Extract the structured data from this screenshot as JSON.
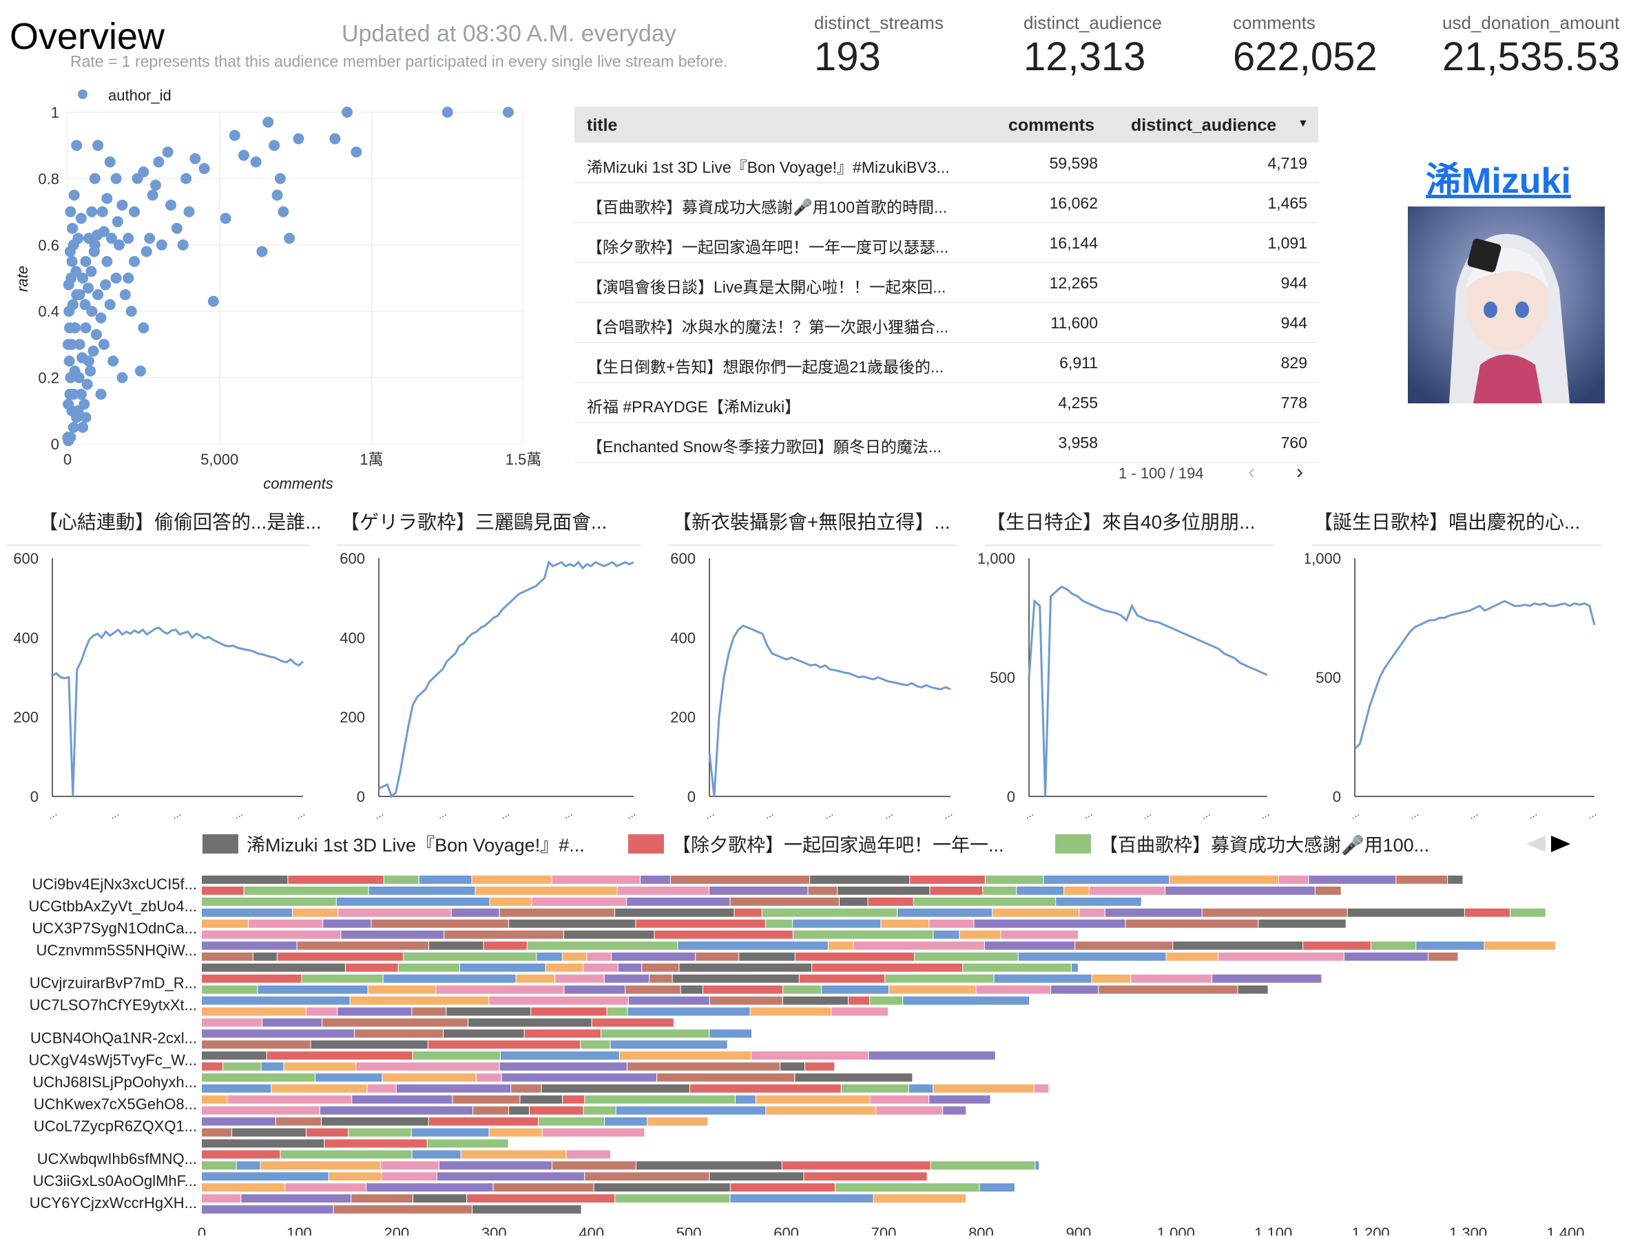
{
  "header": {
    "title": "Overview",
    "updated_text": "Updated at 08:30 A.M. everyday",
    "rate_note": "Rate = 1 represents that this audience member participated in every single live stream before."
  },
  "kpis": [
    {
      "label": "distinct_streams",
      "value": "193"
    },
    {
      "label": "distinct_audience",
      "value": "12,313"
    },
    {
      "label": "comments",
      "value": "622,052"
    },
    {
      "label": "usd_donation_amount",
      "value": "21,535.53"
    }
  ],
  "scatter": {
    "legend": "author_id",
    "xlabel": "comments",
    "ylabel": "rate",
    "x_ticks": [
      "0",
      "5,000",
      "1萬",
      "1.5萬"
    ],
    "y_ticks": [
      "0",
      "0.2",
      "0.4",
      "0.6",
      "0.8",
      "1"
    ],
    "color": "#6f9ad3",
    "chart_data": {
      "type": "scatter",
      "xlim": [
        0,
        15000
      ],
      "ylim": [
        0,
        1
      ],
      "points": [
        [
          12500,
          1.0
        ],
        [
          14500,
          1.0
        ],
        [
          9200,
          1.0
        ],
        [
          8800,
          0.92
        ],
        [
          9500,
          0.88
        ],
        [
          7600,
          0.92
        ],
        [
          6600,
          0.97
        ],
        [
          6800,
          0.9
        ],
        [
          7000,
          0.8
        ],
        [
          6900,
          0.75
        ],
        [
          7100,
          0.7
        ],
        [
          7300,
          0.62
        ],
        [
          6400,
          0.58
        ],
        [
          5500,
          0.93
        ],
        [
          5800,
          0.87
        ],
        [
          6200,
          0.85
        ],
        [
          5200,
          0.68
        ],
        [
          4800,
          0.43
        ],
        [
          4500,
          0.83
        ],
        [
          4200,
          0.86
        ],
        [
          3900,
          0.8
        ],
        [
          4000,
          0.7
        ],
        [
          3800,
          0.6
        ],
        [
          3400,
          0.72
        ],
        [
          3600,
          0.65
        ],
        [
          3000,
          0.85
        ],
        [
          2900,
          0.78
        ],
        [
          2800,
          0.75
        ],
        [
          2600,
          0.58
        ],
        [
          2500,
          0.82
        ],
        [
          2300,
          0.8
        ],
        [
          2200,
          0.7
        ],
        [
          2000,
          0.62
        ],
        [
          2200,
          0.55
        ],
        [
          1800,
          0.72
        ],
        [
          1600,
          0.8
        ],
        [
          1400,
          0.85
        ],
        [
          1300,
          0.74
        ],
        [
          1200,
          0.64
        ],
        [
          1000,
          0.9
        ],
        [
          900,
          0.8
        ],
        [
          800,
          0.7
        ],
        [
          700,
          0.62
        ],
        [
          600,
          0.55
        ],
        [
          500,
          0.5
        ],
        [
          400,
          0.45
        ],
        [
          300,
          0.9
        ],
        [
          200,
          0.6
        ],
        [
          150,
          0.55
        ],
        [
          100,
          0.7
        ],
        [
          50,
          0.4
        ],
        [
          20,
          0.3
        ],
        [
          60,
          0.25
        ],
        [
          100,
          0.2
        ],
        [
          200,
          0.15
        ],
        [
          150,
          0.1
        ],
        [
          300,
          0.08
        ],
        [
          500,
          0.05
        ],
        [
          100,
          0.02
        ],
        [
          30,
          0.01
        ],
        [
          400,
          0.3
        ],
        [
          600,
          0.35
        ],
        [
          800,
          0.4
        ],
        [
          1000,
          0.45
        ],
        [
          1200,
          0.3
        ],
        [
          1500,
          0.25
        ],
        [
          1800,
          0.2
        ],
        [
          2400,
          0.22
        ],
        [
          2500,
          0.35
        ],
        [
          1600,
          0.5
        ],
        [
          1400,
          0.42
        ],
        [
          900,
          0.6
        ],
        [
          700,
          0.25
        ],
        [
          300,
          0.45
        ],
        [
          250,
          0.35
        ],
        [
          200,
          0.05
        ],
        [
          80,
          0.15
        ],
        [
          120,
          0.5
        ],
        [
          350,
          0.62
        ],
        [
          450,
          0.68
        ],
        [
          550,
          0.12
        ],
        [
          650,
          0.18
        ],
        [
          750,
          0.22
        ],
        [
          850,
          0.28
        ],
        [
          950,
          0.33
        ],
        [
          1100,
          0.38
        ],
        [
          1300,
          0.55
        ],
        [
          1700,
          0.6
        ],
        [
          1900,
          0.45
        ],
        [
          2100,
          0.4
        ],
        [
          220,
          0.75
        ],
        [
          160,
          0.65
        ],
        [
          90,
          0.58
        ],
        [
          40,
          0.48
        ],
        [
          10,
          0.02
        ],
        [
          25,
          0.12
        ],
        [
          70,
          0.35
        ],
        [
          180,
          0.42
        ],
        [
          280,
          0.52
        ],
        [
          380,
          0.2
        ],
        [
          480,
          0.26
        ],
        [
          580,
          0.42
        ],
        [
          680,
          0.47
        ],
        [
          780,
          0.52
        ],
        [
          880,
          0.58
        ],
        [
          980,
          0.63
        ],
        [
          1150,
          0.7
        ],
        [
          1250,
          0.48
        ],
        [
          1450,
          0.62
        ],
        [
          1650,
          0.67
        ],
        [
          2700,
          0.62
        ],
        [
          3100,
          0.6
        ],
        [
          3300,
          0.88
        ],
        [
          2000,
          0.5
        ],
        [
          1100,
          0.15
        ],
        [
          600,
          0.08
        ],
        [
          350,
          0.1
        ],
        [
          450,
          0.15
        ],
        [
          130,
          0.3
        ],
        [
          240,
          0.22
        ]
      ]
    }
  },
  "table": {
    "columns": [
      "title",
      "comments",
      "distinct_audience"
    ],
    "rows": [
      [
        "浠Mizuki 1st 3D Live『Bon Voyage!』#MizukiBV3...",
        "59,598",
        "4,719"
      ],
      [
        "【百曲歌枠】募資成功大感謝🎤用100首歌的時間...",
        "16,062",
        "1,465"
      ],
      [
        "【除夕歌枠】一起回家過年吧！一年一度可以瑟瑟...",
        "16,144",
        "1,091"
      ],
      [
        "【演唱會後日談】Live真是太開心啦！！一起來回...",
        "12,265",
        "944"
      ],
      [
        "【合唱歌枠】冰與水的魔法！？第一次跟小狸貓合...",
        "11,600",
        "944"
      ],
      [
        "【生日倒數+告知】想跟你們一起度過21歲最後的...",
        "6,911",
        "829"
      ],
      [
        "祈福 #PRAYDGE【浠Mizuki】",
        "4,255",
        "778"
      ],
      [
        "【Enchanted Snow冬季接力歌回】願冬日的魔法...",
        "3,958",
        "760"
      ]
    ],
    "pagination": "1 - 100 / 194",
    "sort_icon": "sort-desc-icon"
  },
  "channel": {
    "name": "浠Mizuki"
  },
  "line_charts": [
    {
      "title": "【心結連動】偷偷回答的...是誰...",
      "y_ticks": [
        "0",
        "200",
        "400",
        "600"
      ],
      "ymax": 600,
      "x_ticks": [
        "...",
        "...",
        "...",
        "...",
        "..."
      ],
      "chart_data": {
        "type": "line",
        "ylim": [
          0,
          600
        ],
        "values": [
          305,
          310,
          300,
          298,
          300,
          0,
          320,
          340,
          370,
          395,
          405,
          410,
          400,
          415,
          405,
          412,
          420,
          408,
          415,
          410,
          418,
          412,
          420,
          408,
          415,
          422,
          425,
          415,
          410,
          418,
          420,
          408,
          412,
          415,
          400,
          410,
          405,
          398,
          402,
          395,
          390,
          385,
          380,
          378,
          380,
          375,
          372,
          370,
          368,
          365,
          360,
          358,
          355,
          352,
          350,
          345,
          340,
          338,
          345,
          335,
          330,
          340
        ]
      }
    },
    {
      "title": "【ゲリラ歌枠】三麗鷗見面會...",
      "y_ticks": [
        "0",
        "200",
        "400",
        "600"
      ],
      "ymax": 600,
      "x_ticks": [
        "...",
        "...",
        "...",
        "...",
        "..."
      ],
      "chart_data": {
        "type": "line",
        "ylim": [
          0,
          600
        ],
        "values": [
          20,
          25,
          30,
          0,
          10,
          60,
          120,
          180,
          230,
          250,
          260,
          270,
          290,
          300,
          310,
          320,
          340,
          350,
          360,
          380,
          385,
          400,
          410,
          415,
          425,
          430,
          440,
          450,
          455,
          470,
          480,
          490,
          500,
          510,
          515,
          520,
          525,
          530,
          540,
          550,
          590,
          580,
          585,
          590,
          580,
          585,
          580,
          590,
          575,
          585,
          580,
          590,
          585,
          580,
          585,
          590,
          580,
          585,
          590,
          585,
          590
        ]
      }
    },
    {
      "title": "【新衣裝攝影會+無限拍立得】...",
      "y_ticks": [
        "0",
        "200",
        "400",
        "600"
      ],
      "ymax": 600,
      "x_ticks": [
        "...",
        "...",
        "...",
        "...",
        "..."
      ],
      "chart_data": {
        "type": "line",
        "ylim": [
          0,
          600
        ],
        "values": [
          110,
          0,
          200,
          300,
          360,
          400,
          420,
          430,
          425,
          420,
          415,
          410,
          380,
          360,
          355,
          350,
          345,
          350,
          345,
          340,
          335,
          330,
          332,
          325,
          330,
          320,
          318,
          315,
          312,
          310,
          305,
          300,
          302,
          298,
          295,
          300,
          295,
          290,
          288,
          285,
          282,
          280,
          285,
          278,
          275,
          280,
          275,
          272,
          270,
          275,
          270
        ]
      }
    },
    {
      "title": "【生日特企】來自40多位朋朋...",
      "y_ticks": [
        "0",
        "500",
        "1,000"
      ],
      "ymax": 1000,
      "x_ticks": [
        "...",
        "...",
        "...",
        "...",
        "..."
      ],
      "chart_data": {
        "type": "line",
        "ylim": [
          0,
          1000
        ],
        "values": [
          500,
          820,
          800,
          0,
          840,
          860,
          880,
          870,
          850,
          840,
          820,
          810,
          800,
          790,
          780,
          775,
          770,
          760,
          740,
          800,
          760,
          750,
          740,
          735,
          730,
          720,
          710,
          700,
          690,
          680,
          670,
          660,
          650,
          640,
          630,
          620,
          600,
          590,
          580,
          560,
          550,
          540,
          530,
          520,
          510
        ]
      }
    },
    {
      "title": "【誕生日歌枠】唱出慶祝的心...",
      "y_ticks": [
        "0",
        "500",
        "1,000"
      ],
      "ymax": 1000,
      "x_ticks": [
        "...",
        "...",
        "...",
        "...",
        "..."
      ],
      "chart_data": {
        "type": "line",
        "ylim": [
          0,
          1000
        ],
        "values": [
          200,
          220,
          300,
          380,
          440,
          500,
          540,
          570,
          600,
          630,
          660,
          690,
          710,
          720,
          730,
          740,
          740,
          750,
          750,
          760,
          765,
          770,
          775,
          780,
          790,
          800,
          780,
          790,
          800,
          810,
          820,
          810,
          800,
          800,
          805,
          800,
          810,
          805,
          810,
          800,
          800,
          805,
          810,
          800,
          810,
          805,
          810,
          800,
          720
        ]
      }
    }
  ],
  "bar_chart": {
    "legend": [
      {
        "name": "浠Mizuki 1st 3D Live『Bon Voyage!』#...",
        "color": "#707070"
      },
      {
        "name": "【除夕歌枠】一起回家過年吧！一年一...",
        "color": "#e06666"
      },
      {
        "name": "【百曲歌枠】募資成功大感謝🎤用100...",
        "color": "#93c47d"
      }
    ],
    "prev_icon": "prev-page-icon",
    "next_icon": "next-page-icon",
    "y_labels": [
      "UCi9bv4EjNx3xcUCI5f...",
      "UCGtbbAxZyVt_zbUo4...",
      "UCX3P7SygN1OdnCa...",
      "UCznvmm5S5NHQiW...",
      "UCvjrzuirarBvP7mD_R...",
      "UC7LSO7hCfYE9ytxXt...",
      "UCBN4OhQa1NR-2cxl...",
      "UCXgV4sWj5TvyFc_W...",
      "UChJ68ISLjPpOohyxh...",
      "UChKwex7cX5GehO8...",
      "UCoL7ZycpR6ZQXQ1...",
      "UCXwbqwIhb6sfMNQ...",
      "UC3iiGxLs0AoOglMhF...",
      "UCY6YCjzxWccrHgXH..."
    ],
    "x_ticks": [
      "0",
      "100",
      "200",
      "300",
      "400",
      "500",
      "600",
      "700",
      "800",
      "900",
      "1,000",
      "1,100",
      "1,200",
      "1,300",
      "1,400"
    ],
    "colors": [
      "#707070",
      "#e06666",
      "#93c47d",
      "#6f9ad3",
      "#f6b26b",
      "#ea9ab7",
      "#8e7cc3",
      "#c27b6b"
    ],
    "chart_data": {
      "type": "bar",
      "orientation": "horizontal",
      "stacked": true,
      "xlim": [
        0,
        1400
      ],
      "totals": [
        1295,
        1170,
        965,
        1380,
        1175,
        900,
        1390,
        1290,
        900,
        1150,
        1095,
        850,
        705,
        485,
        565,
        540,
        815,
        650,
        730,
        870,
        810,
        785,
        520,
        455,
        315,
        420,
        860,
        745,
        835,
        785,
        390
      ]
    }
  }
}
